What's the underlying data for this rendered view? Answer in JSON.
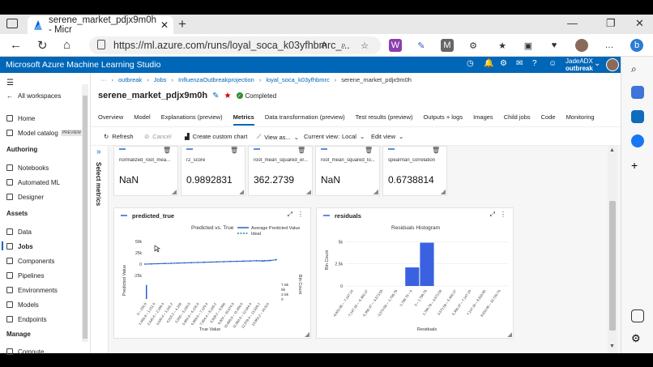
{
  "browser": {
    "tab_title": "serene_market_pdjx9m0h - Micr",
    "url": "https://ml.azure.com/runs/loyal_soca_k03yfhbmrc_..."
  },
  "header": {
    "app_title": "Microsoft Azure Machine Learning Studio",
    "user_name": "JadeADX",
    "user_org": "outbreak"
  },
  "leftnav": {
    "back": "All workspaces",
    "items": [
      {
        "label": "Home"
      },
      {
        "label": "Model catalog",
        "badge": "PREVIEW"
      }
    ],
    "authoring_title": "Authoring",
    "authoring": [
      {
        "label": "Notebooks"
      },
      {
        "label": "Automated ML"
      },
      {
        "label": "Designer"
      }
    ],
    "assets_title": "Assets",
    "assets": [
      {
        "label": "Data"
      },
      {
        "label": "Jobs"
      },
      {
        "label": "Components"
      },
      {
        "label": "Pipelines"
      },
      {
        "label": "Environments"
      },
      {
        "label": "Models"
      },
      {
        "label": "Endpoints"
      }
    ],
    "manage_title": "Manage",
    "manage": [
      {
        "label": "Compute"
      }
    ]
  },
  "breadcrumb": [
    "outbreak",
    "Jobs",
    "InfluenzaOutbreakprojection",
    "loyal_soca_k03yfhbmrc",
    "serene_market_pdjx9m0h"
  ],
  "page": {
    "title": "serene_market_pdjx9m0h",
    "status": "Completed"
  },
  "tabs": [
    "Overview",
    "Model",
    "Explanations (preview)",
    "Metrics",
    "Data transformation (preview)",
    "Test results (preview)",
    "Outputs + logs",
    "Images",
    "Child jobs",
    "Code",
    "Monitoring"
  ],
  "active_tab": "Metrics",
  "commands": {
    "refresh": "Refresh",
    "cancel": "Cancel",
    "custom_chart": "Create custom chart",
    "view_as": "View as...",
    "current_view_label": "Current view:",
    "current_view_value": "Local",
    "edit_view": "Edit view"
  },
  "select_metrics": "Select metrics",
  "metrics": [
    {
      "name": "normalized_root_mea...",
      "value": "NaN"
    },
    {
      "name": "r2_score",
      "value": "0.9892831"
    },
    {
      "name": "root_mean_squared_er...",
      "value": "362.2739"
    },
    {
      "name": "root_mean_squared_lo...",
      "value": "NaN"
    },
    {
      "name": "spearman_correlation",
      "value": "0.6738814"
    }
  ],
  "chart_data": [
    {
      "type": "line",
      "card_title": "predicted_true",
      "title": "Predicted vs. True",
      "xlabel": "True Value",
      "ylabel": "Predicted Value",
      "y2label": "Bin Count",
      "yticks": [
        "50k",
        "25k",
        "0",
        "-25k"
      ],
      "y2ticks": [
        "7.5k",
        "5k",
        "2.5k",
        "0"
      ],
      "xticks": [
        "0 – 150.8",
        "1,060.8 – 1,211.6",
        "2,045.6 – 2,196.4",
        "3,030.4 – 3,181.2",
        "4,015.2 – 4,166",
        "5,000 – 5,150.8",
        "5,984.8 – 6,135.6",
        "6,969.6 – 7,120.4",
        "7,954.4 – 8,105.2",
        "8,939.2 – 9,090",
        "9,924 – 10,074.8",
        "10,908.8 – 11,059.6",
        "11,893.6 – 12,044.4",
        "12,878.4 – 13,029.2",
        "13,863.2 – 14,014"
      ],
      "legend": [
        "Average Predicted Value",
        "Ideal"
      ],
      "series": [
        {
          "name": "Average Predicted Value",
          "values": [
            150,
            1100,
            1900,
            2900,
            3800,
            4900,
            5900,
            6700,
            7900,
            8800,
            9800,
            10900,
            11700,
            12700,
            13600,
            14500,
            15200,
            16400,
            14800,
            17100,
            22000
          ]
        },
        {
          "name": "Ideal",
          "values": [
            0,
            1000,
            2000,
            3000,
            4000,
            5000,
            6000,
            7000,
            8000,
            9000,
            10000,
            11000,
            12000,
            13000,
            14000,
            15000,
            16000,
            17000,
            18000,
            19000,
            20000
          ]
        }
      ],
      "bin_counts": [
        7200,
        0,
        0,
        0,
        0,
        0,
        0,
        0,
        0,
        0,
        0,
        0,
        0,
        0,
        0
      ]
    },
    {
      "type": "bar",
      "card_title": "residuals",
      "title": "Residuals Histogram",
      "xlabel": "Residuals",
      "ylabel": "Bin Count",
      "yticks": [
        "5k",
        "2.5k",
        "0"
      ],
      "categories": [
        "-8,933.95 – -7,147.16",
        "-7,147.16 – -5,360.37",
        "-5,360.37 – -3,573.58",
        "-3,573.58 – -1,786.79",
        "-1,786.79 – 0",
        "0 – 1,786.79",
        "1,786.79 – 3,573.58",
        "3,573.58 – 5,360.37",
        "5,360.37 – 7,147.16",
        "7,147.16 – 8,933.95",
        "8,933.95 – 10,720.74"
      ],
      "values": [
        0,
        0,
        0,
        0,
        2100,
        4900,
        0,
        0,
        0,
        0,
        0
      ],
      "ylim": [
        0,
        5500
      ]
    }
  ]
}
